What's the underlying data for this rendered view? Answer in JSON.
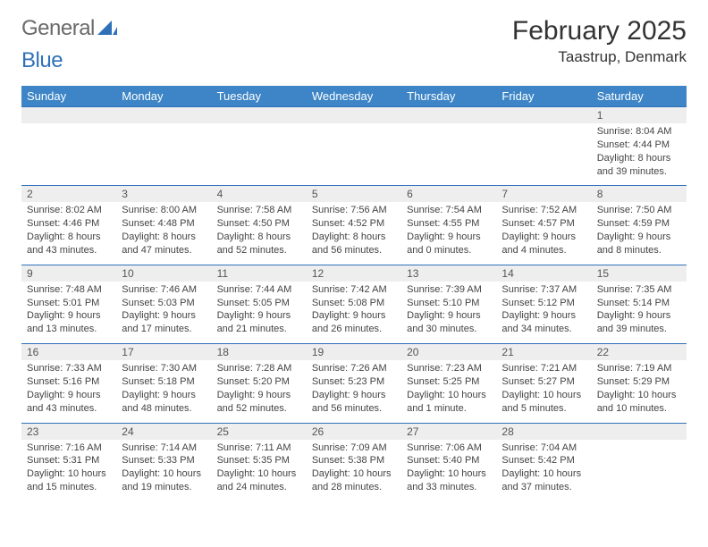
{
  "brand": {
    "part1": "General",
    "part2": "Blue"
  },
  "title": "February 2025",
  "location": "Taastrup, Denmark",
  "weekday_headers": [
    "Sunday",
    "Monday",
    "Tuesday",
    "Wednesday",
    "Thursday",
    "Friday",
    "Saturday"
  ],
  "colors": {
    "header_bg": "#3d85c6",
    "header_fg": "#ffffff",
    "row_divider": "#2f71b8",
    "daynum_bg": "#eeeeee",
    "text": "#333333",
    "logo_gray": "#6a6a6a",
    "logo_blue": "#2f71b8",
    "background": "#ffffff"
  },
  "typography": {
    "title_fontsize": 30,
    "location_fontsize": 17,
    "header_fontsize": 13,
    "daynum_fontsize": 12,
    "info_fontsize": 11
  },
  "weeks": [
    [
      null,
      null,
      null,
      null,
      null,
      null,
      {
        "n": "1",
        "sr": "Sunrise: 8:04 AM",
        "ss": "Sunset: 4:44 PM",
        "d1": "Daylight: 8 hours",
        "d2": "and 39 minutes."
      }
    ],
    [
      {
        "n": "2",
        "sr": "Sunrise: 8:02 AM",
        "ss": "Sunset: 4:46 PM",
        "d1": "Daylight: 8 hours",
        "d2": "and 43 minutes."
      },
      {
        "n": "3",
        "sr": "Sunrise: 8:00 AM",
        "ss": "Sunset: 4:48 PM",
        "d1": "Daylight: 8 hours",
        "d2": "and 47 minutes."
      },
      {
        "n": "4",
        "sr": "Sunrise: 7:58 AM",
        "ss": "Sunset: 4:50 PM",
        "d1": "Daylight: 8 hours",
        "d2": "and 52 minutes."
      },
      {
        "n": "5",
        "sr": "Sunrise: 7:56 AM",
        "ss": "Sunset: 4:52 PM",
        "d1": "Daylight: 8 hours",
        "d2": "and 56 minutes."
      },
      {
        "n": "6",
        "sr": "Sunrise: 7:54 AM",
        "ss": "Sunset: 4:55 PM",
        "d1": "Daylight: 9 hours",
        "d2": "and 0 minutes."
      },
      {
        "n": "7",
        "sr": "Sunrise: 7:52 AM",
        "ss": "Sunset: 4:57 PM",
        "d1": "Daylight: 9 hours",
        "d2": "and 4 minutes."
      },
      {
        "n": "8",
        "sr": "Sunrise: 7:50 AM",
        "ss": "Sunset: 4:59 PM",
        "d1": "Daylight: 9 hours",
        "d2": "and 8 minutes."
      }
    ],
    [
      {
        "n": "9",
        "sr": "Sunrise: 7:48 AM",
        "ss": "Sunset: 5:01 PM",
        "d1": "Daylight: 9 hours",
        "d2": "and 13 minutes."
      },
      {
        "n": "10",
        "sr": "Sunrise: 7:46 AM",
        "ss": "Sunset: 5:03 PM",
        "d1": "Daylight: 9 hours",
        "d2": "and 17 minutes."
      },
      {
        "n": "11",
        "sr": "Sunrise: 7:44 AM",
        "ss": "Sunset: 5:05 PM",
        "d1": "Daylight: 9 hours",
        "d2": "and 21 minutes."
      },
      {
        "n": "12",
        "sr": "Sunrise: 7:42 AM",
        "ss": "Sunset: 5:08 PM",
        "d1": "Daylight: 9 hours",
        "d2": "and 26 minutes."
      },
      {
        "n": "13",
        "sr": "Sunrise: 7:39 AM",
        "ss": "Sunset: 5:10 PM",
        "d1": "Daylight: 9 hours",
        "d2": "and 30 minutes."
      },
      {
        "n": "14",
        "sr": "Sunrise: 7:37 AM",
        "ss": "Sunset: 5:12 PM",
        "d1": "Daylight: 9 hours",
        "d2": "and 34 minutes."
      },
      {
        "n": "15",
        "sr": "Sunrise: 7:35 AM",
        "ss": "Sunset: 5:14 PM",
        "d1": "Daylight: 9 hours",
        "d2": "and 39 minutes."
      }
    ],
    [
      {
        "n": "16",
        "sr": "Sunrise: 7:33 AM",
        "ss": "Sunset: 5:16 PM",
        "d1": "Daylight: 9 hours",
        "d2": "and 43 minutes."
      },
      {
        "n": "17",
        "sr": "Sunrise: 7:30 AM",
        "ss": "Sunset: 5:18 PM",
        "d1": "Daylight: 9 hours",
        "d2": "and 48 minutes."
      },
      {
        "n": "18",
        "sr": "Sunrise: 7:28 AM",
        "ss": "Sunset: 5:20 PM",
        "d1": "Daylight: 9 hours",
        "d2": "and 52 minutes."
      },
      {
        "n": "19",
        "sr": "Sunrise: 7:26 AM",
        "ss": "Sunset: 5:23 PM",
        "d1": "Daylight: 9 hours",
        "d2": "and 56 minutes."
      },
      {
        "n": "20",
        "sr": "Sunrise: 7:23 AM",
        "ss": "Sunset: 5:25 PM",
        "d1": "Daylight: 10 hours",
        "d2": "and 1 minute."
      },
      {
        "n": "21",
        "sr": "Sunrise: 7:21 AM",
        "ss": "Sunset: 5:27 PM",
        "d1": "Daylight: 10 hours",
        "d2": "and 5 minutes."
      },
      {
        "n": "22",
        "sr": "Sunrise: 7:19 AM",
        "ss": "Sunset: 5:29 PM",
        "d1": "Daylight: 10 hours",
        "d2": "and 10 minutes."
      }
    ],
    [
      {
        "n": "23",
        "sr": "Sunrise: 7:16 AM",
        "ss": "Sunset: 5:31 PM",
        "d1": "Daylight: 10 hours",
        "d2": "and 15 minutes."
      },
      {
        "n": "24",
        "sr": "Sunrise: 7:14 AM",
        "ss": "Sunset: 5:33 PM",
        "d1": "Daylight: 10 hours",
        "d2": "and 19 minutes."
      },
      {
        "n": "25",
        "sr": "Sunrise: 7:11 AM",
        "ss": "Sunset: 5:35 PM",
        "d1": "Daylight: 10 hours",
        "d2": "and 24 minutes."
      },
      {
        "n": "26",
        "sr": "Sunrise: 7:09 AM",
        "ss": "Sunset: 5:38 PM",
        "d1": "Daylight: 10 hours",
        "d2": "and 28 minutes."
      },
      {
        "n": "27",
        "sr": "Sunrise: 7:06 AM",
        "ss": "Sunset: 5:40 PM",
        "d1": "Daylight: 10 hours",
        "d2": "and 33 minutes."
      },
      {
        "n": "28",
        "sr": "Sunrise: 7:04 AM",
        "ss": "Sunset: 5:42 PM",
        "d1": "Daylight: 10 hours",
        "d2": "and 37 minutes."
      },
      null
    ]
  ]
}
